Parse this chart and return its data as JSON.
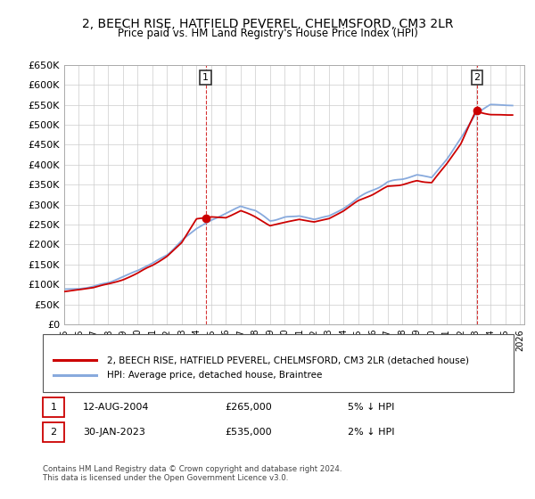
{
  "title": "2, BEECH RISE, HATFIELD PEVEREL, CHELMSFORD, CM3 2LR",
  "subtitle": "Price paid vs. HM Land Registry's House Price Index (HPI)",
  "ylim": [
    0,
    650000
  ],
  "yticks": [
    0,
    50000,
    100000,
    150000,
    200000,
    250000,
    300000,
    350000,
    400000,
    450000,
    500000,
    550000,
    600000,
    650000
  ],
  "transaction1": {
    "year": 2004.62,
    "price": 265000,
    "label": "1"
  },
  "transaction2": {
    "year": 2023.08,
    "price": 535000,
    "label": "2"
  },
  "line_color_paid": "#cc0000",
  "line_color_hpi": "#88aadd",
  "legend_label_paid": "2, BEECH RISE, HATFIELD PEVEREL, CHELMSFORD, CM3 2LR (detached house)",
  "legend_label_hpi": "HPI: Average price, detached house, Braintree",
  "note1_label": "1",
  "note1_date": "12-AUG-2004",
  "note1_price": "£265,000",
  "note1_hpi": "5% ↓ HPI",
  "note2_label": "2",
  "note2_date": "30-JAN-2023",
  "note2_price": "£535,000",
  "note2_hpi": "2% ↓ HPI",
  "footer": "Contains HM Land Registry data © Crown copyright and database right 2024.\nThis data is licensed under the Open Government Licence v3.0.",
  "background_color": "#ffffff",
  "grid_color": "#cccccc",
  "hpi_years": [
    1995,
    1996,
    1997,
    1998,
    1999,
    2000,
    2001,
    2002,
    2003,
    2004,
    2005,
    2006,
    2007,
    2008,
    2009,
    2010,
    2011,
    2012,
    2013,
    2014,
    2015,
    2016,
    2017,
    2018,
    2019,
    2020,
    2021,
    2022,
    2023,
    2024,
    2025
  ],
  "hpi_vals": [
    88000,
    90000,
    96000,
    105000,
    118000,
    133000,
    152000,
    178000,
    210000,
    240000,
    262000,
    278000,
    295000,
    285000,
    260000,
    268000,
    272000,
    265000,
    272000,
    292000,
    318000,
    338000,
    358000,
    365000,
    375000,
    368000,
    415000,
    468000,
    530000,
    548000,
    545000
  ],
  "paid_years": [
    1995,
    1996,
    1997,
    1998,
    1999,
    2000,
    2001,
    2002,
    2003,
    2004,
    2005,
    2006,
    2007,
    2008,
    2009,
    2010,
    2011,
    2012,
    2013,
    2014,
    2015,
    2016,
    2017,
    2018,
    2019,
    2020,
    2021,
    2022,
    2023,
    2024,
    2025
  ],
  "paid_vals": [
    83000,
    86000,
    92000,
    102000,
    114000,
    129000,
    148000,
    172000,
    205000,
    265000,
    270000,
    268000,
    285000,
    268000,
    248000,
    256000,
    262000,
    255000,
    262000,
    282000,
    308000,
    325000,
    345000,
    352000,
    362000,
    355000,
    400000,
    452000,
    535000,
    527000,
    524000
  ]
}
